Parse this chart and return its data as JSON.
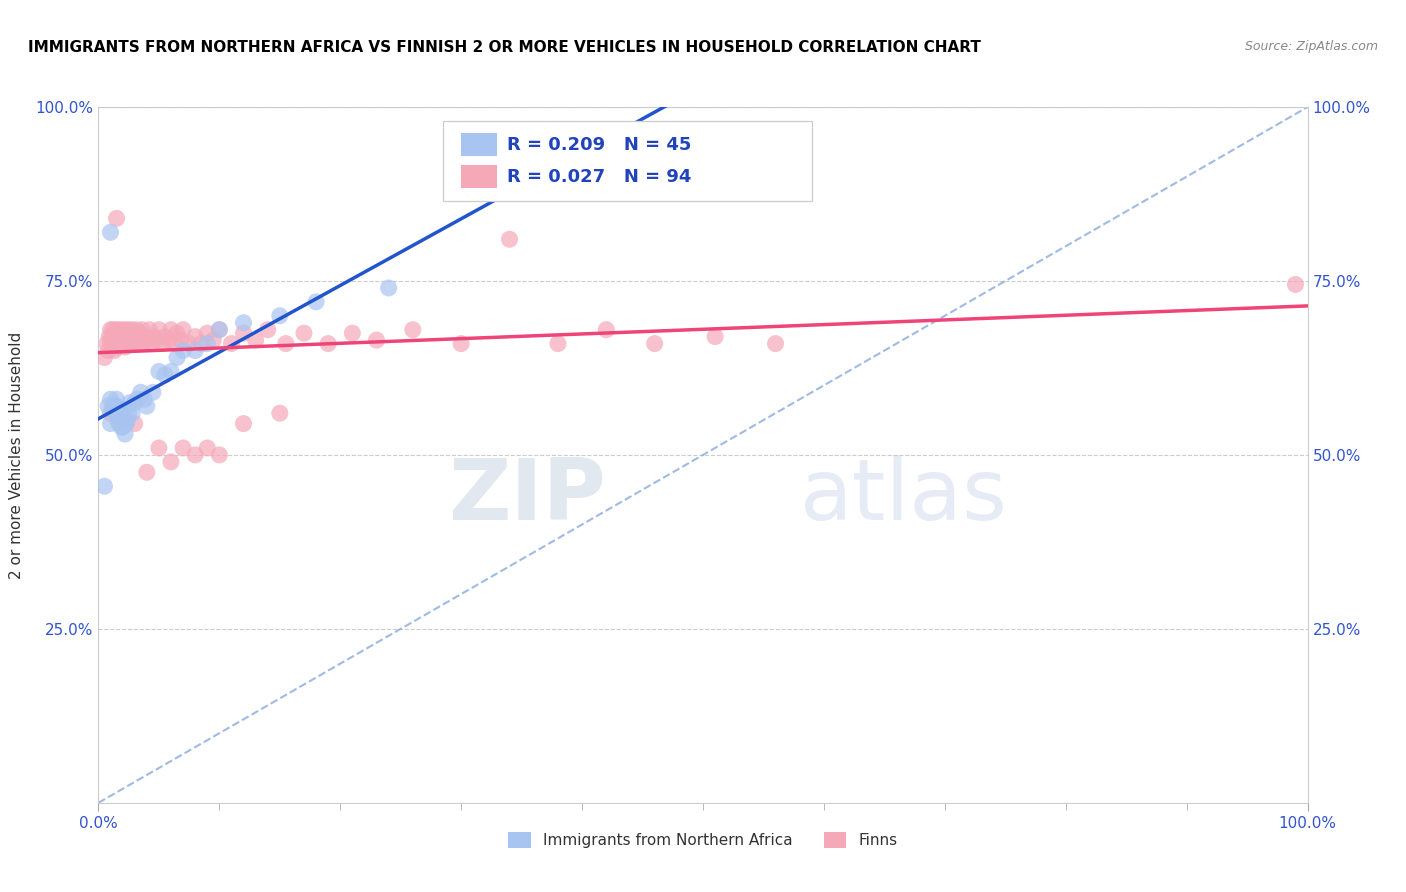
{
  "title": "IMMIGRANTS FROM NORTHERN AFRICA VS FINNISH 2 OR MORE VEHICLES IN HOUSEHOLD CORRELATION CHART",
  "source": "Source: ZipAtlas.com",
  "ylabel": "2 or more Vehicles in Household",
  "R_blue": 0.209,
  "N_blue": 45,
  "R_pink": 0.027,
  "N_pink": 94,
  "blue_color": "#a8c4f0",
  "pink_color": "#f5a8b8",
  "blue_line_color": "#2255cc",
  "pink_line_color": "#ee4477",
  "dashed_line_color": "#88aadd",
  "legend_blue_label": "Immigrants from Northern Africa",
  "legend_pink_label": "Finns",
  "watermark_zip": "ZIP",
  "watermark_atlas": "atlas",
  "blue_points_x": [
    0.005,
    0.008,
    0.01,
    0.01,
    0.012,
    0.012,
    0.013,
    0.014,
    0.015,
    0.015,
    0.016,
    0.016,
    0.017,
    0.018,
    0.018,
    0.019,
    0.02,
    0.02,
    0.021,
    0.022,
    0.022,
    0.023,
    0.024,
    0.025,
    0.026,
    0.028,
    0.03,
    0.032,
    0.035,
    0.038,
    0.04,
    0.045,
    0.05,
    0.055,
    0.06,
    0.065,
    0.07,
    0.08,
    0.09,
    0.1,
    0.12,
    0.15,
    0.18,
    0.24,
    0.01
  ],
  "blue_points_y": [
    0.455,
    0.57,
    0.58,
    0.545,
    0.57,
    0.565,
    0.57,
    0.57,
    0.58,
    0.57,
    0.56,
    0.55,
    0.545,
    0.56,
    0.555,
    0.54,
    0.54,
    0.55,
    0.565,
    0.545,
    0.53,
    0.545,
    0.55,
    0.56,
    0.575,
    0.56,
    0.575,
    0.58,
    0.59,
    0.58,
    0.57,
    0.59,
    0.62,
    0.615,
    0.62,
    0.64,
    0.65,
    0.65,
    0.66,
    0.68,
    0.69,
    0.7,
    0.72,
    0.74,
    0.82
  ],
  "pink_points_x": [
    0.005,
    0.007,
    0.008,
    0.009,
    0.01,
    0.01,
    0.011,
    0.012,
    0.012,
    0.013,
    0.013,
    0.014,
    0.015,
    0.015,
    0.016,
    0.016,
    0.017,
    0.018,
    0.018,
    0.019,
    0.02,
    0.02,
    0.021,
    0.021,
    0.022,
    0.022,
    0.023,
    0.024,
    0.025,
    0.025,
    0.026,
    0.027,
    0.028,
    0.029,
    0.03,
    0.031,
    0.032,
    0.033,
    0.034,
    0.035,
    0.036,
    0.037,
    0.038,
    0.04,
    0.042,
    0.044,
    0.046,
    0.048,
    0.05,
    0.053,
    0.055,
    0.058,
    0.06,
    0.063,
    0.065,
    0.068,
    0.07,
    0.075,
    0.08,
    0.085,
    0.09,
    0.095,
    0.1,
    0.11,
    0.12,
    0.13,
    0.14,
    0.155,
    0.17,
    0.19,
    0.21,
    0.23,
    0.26,
    0.3,
    0.34,
    0.38,
    0.42,
    0.46,
    0.51,
    0.56,
    0.01,
    0.02,
    0.03,
    0.04,
    0.05,
    0.06,
    0.07,
    0.08,
    0.09,
    0.1,
    0.12,
    0.15,
    0.99,
    0.015
  ],
  "pink_points_y": [
    0.64,
    0.66,
    0.65,
    0.67,
    0.68,
    0.66,
    0.67,
    0.68,
    0.66,
    0.67,
    0.65,
    0.665,
    0.68,
    0.66,
    0.675,
    0.655,
    0.67,
    0.66,
    0.68,
    0.665,
    0.675,
    0.66,
    0.68,
    0.665,
    0.67,
    0.655,
    0.665,
    0.68,
    0.66,
    0.67,
    0.665,
    0.68,
    0.66,
    0.67,
    0.665,
    0.68,
    0.67,
    0.66,
    0.675,
    0.665,
    0.68,
    0.66,
    0.67,
    0.665,
    0.68,
    0.66,
    0.67,
    0.665,
    0.68,
    0.66,
    0.67,
    0.665,
    0.68,
    0.66,
    0.675,
    0.665,
    0.68,
    0.66,
    0.67,
    0.66,
    0.675,
    0.665,
    0.68,
    0.66,
    0.675,
    0.665,
    0.68,
    0.66,
    0.675,
    0.66,
    0.675,
    0.665,
    0.68,
    0.66,
    0.81,
    0.66,
    0.68,
    0.66,
    0.67,
    0.66,
    0.56,
    0.55,
    0.545,
    0.475,
    0.51,
    0.49,
    0.51,
    0.5,
    0.51,
    0.5,
    0.545,
    0.56,
    0.745,
    0.84
  ]
}
